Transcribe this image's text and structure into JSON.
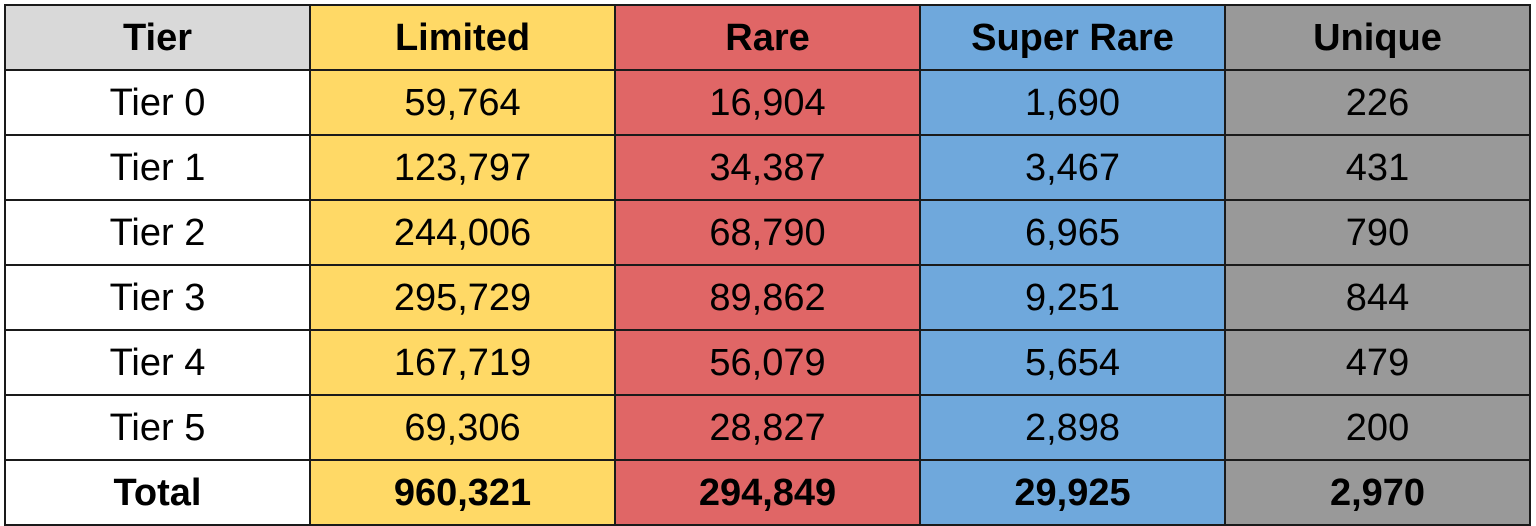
{
  "header": {
    "tier": "Tier",
    "limited": "Limited",
    "rare": "Rare",
    "super_rare": "Super Rare",
    "unique": "Unique"
  },
  "rows": [
    {
      "tier": "Tier 0",
      "limited": "59,764",
      "rare": "16,904",
      "super_rare": "1,690",
      "unique": "226"
    },
    {
      "tier": "Tier 1",
      "limited": "123,797",
      "rare": "34,387",
      "super_rare": "3,467",
      "unique": "431"
    },
    {
      "tier": "Tier 2",
      "limited": "244,006",
      "rare": "68,790",
      "super_rare": "6,965",
      "unique": "790"
    },
    {
      "tier": "Tier 3",
      "limited": "295,729",
      "rare": "89,862",
      "super_rare": "9,251",
      "unique": "844"
    },
    {
      "tier": "Tier 4",
      "limited": "167,719",
      "rare": "56,079",
      "super_rare": "5,654",
      "unique": "479"
    },
    {
      "tier": "Tier 5",
      "limited": "69,306",
      "rare": "28,827",
      "super_rare": "2,898",
      "unique": "200"
    }
  ],
  "total": {
    "tier": "Total",
    "limited": "960,321",
    "rare": "294,849",
    "super_rare": "29,925",
    "unique": "2,970"
  },
  "colors": {
    "header_tier": "#d9d9d9",
    "limited": "#ffd966",
    "rare": "#e06666",
    "super_rare": "#6fa8dc",
    "unique": "#999999",
    "border": "#1a1a1a"
  }
}
